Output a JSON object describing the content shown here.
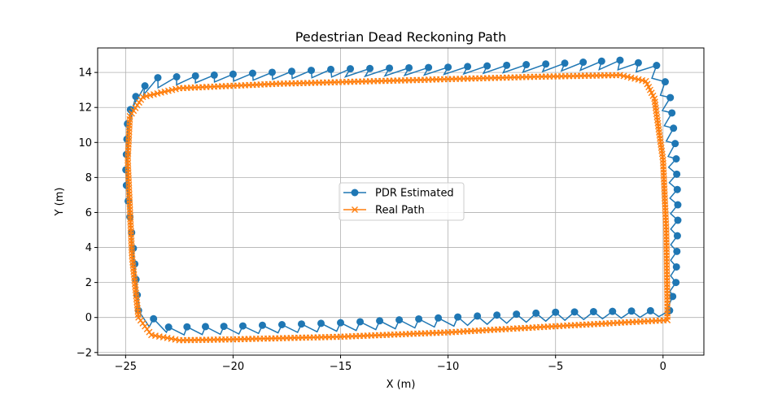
{
  "chart_data": {
    "type": "line",
    "title": "Pedestrian Dead Reckoning Path",
    "xlabel": "X (m)",
    "ylabel": "Y (m)",
    "xlim": [
      -26.3,
      1.9
    ],
    "ylim": [
      -2.15,
      15.4
    ],
    "xticks": [
      -25,
      -20,
      -15,
      -10,
      -5,
      0
    ],
    "yticks": [
      -2,
      0,
      2,
      4,
      6,
      8,
      10,
      12,
      14
    ],
    "grid": true,
    "legend_position": "center",
    "series": [
      {
        "name": "PDR Estimated",
        "color": "#1f77b4",
        "marker": "circle",
        "anchors": [
          [
            0.3,
            0.4
          ],
          [
            -5,
            0.3
          ],
          [
            -10,
            0.0
          ],
          [
            -15,
            -0.3
          ],
          [
            -20,
            -0.5
          ],
          [
            -23,
            -0.55
          ],
          [
            -24.4,
            0.4
          ],
          [
            -24.6,
            3.5
          ],
          [
            -25.0,
            8
          ],
          [
            -24.9,
            11.5
          ],
          [
            -24.4,
            13.0
          ],
          [
            -23.5,
            13.7
          ],
          [
            -20,
            13.9
          ],
          [
            -15,
            14.2
          ],
          [
            -10,
            14.3
          ],
          [
            -5,
            14.5
          ],
          [
            -2,
            14.7
          ],
          [
            -0.3,
            14.4
          ],
          [
            0.3,
            13.0
          ],
          [
            0.6,
            9.5
          ],
          [
            0.7,
            6.0
          ],
          [
            0.6,
            2.0
          ],
          [
            0.3,
            0.4
          ]
        ]
      },
      {
        "name": "Real Path",
        "color": "#ff7f0e",
        "marker": "x",
        "anchors": [
          [
            0.2,
            -0.15
          ],
          [
            -5,
            -0.5
          ],
          [
            -10,
            -0.85
          ],
          [
            -15,
            -1.1
          ],
          [
            -20,
            -1.25
          ],
          [
            -22.5,
            -1.3
          ],
          [
            -23.8,
            -1.0
          ],
          [
            -24.4,
            0.0
          ],
          [
            -24.7,
            3.5
          ],
          [
            -24.9,
            9
          ],
          [
            -24.8,
            11.5
          ],
          [
            -24.2,
            12.6
          ],
          [
            -22.5,
            13.1
          ],
          [
            -18,
            13.35
          ],
          [
            -12,
            13.55
          ],
          [
            -6,
            13.75
          ],
          [
            -2,
            13.85
          ],
          [
            -0.8,
            13.5
          ],
          [
            -0.4,
            12.5
          ],
          [
            0.0,
            9.0
          ],
          [
            0.15,
            5.0
          ],
          [
            0.2,
            1.0
          ],
          [
            0.2,
            -0.15
          ]
        ]
      }
    ]
  }
}
